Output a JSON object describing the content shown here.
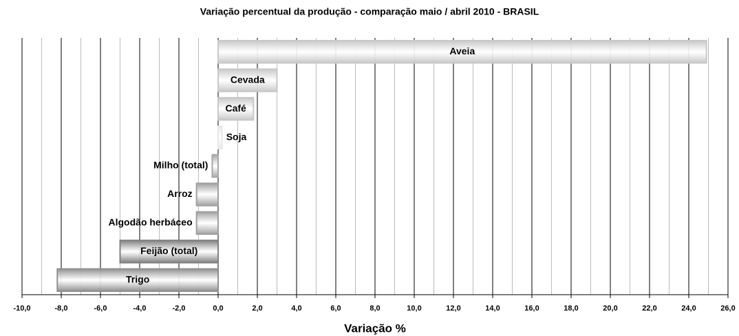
{
  "chart_data": {
    "type": "bar",
    "orientation": "horizontal",
    "title": "Variação percentual da produção - comparação maio / abril 2010 - BRASIL",
    "xlabel": "Variação %",
    "categories": [
      "Aveia",
      "Cevada",
      "Café",
      "Soja",
      "Milho (total)",
      "Arroz",
      "Algodão herbáceo",
      "Feijão (total)",
      "Trigo"
    ],
    "values": [
      24.9,
      3.0,
      1.8,
      0.2,
      -0.3,
      -1.1,
      -1.1,
      -5.0,
      -8.2
    ],
    "colors": [
      "#c8c8c8",
      "#c8c8c8",
      "#c8c8c8",
      "#e8e8e8",
      "#a8a8a8",
      "#a0a0a0",
      "#a0a0a0",
      "#808080",
      "#909090"
    ],
    "xlim": [
      -10,
      26
    ],
    "xticks": [
      {
        "value": -10,
        "label": "-10,0"
      },
      {
        "value": -8,
        "label": "-8,0"
      },
      {
        "value": -6,
        "label": "-6,0"
      },
      {
        "value": -4,
        "label": "-4,0"
      },
      {
        "value": -2,
        "label": "-2,0"
      },
      {
        "value": 0,
        "label": "0,0"
      },
      {
        "value": 2,
        "label": "2,0"
      },
      {
        "value": 4,
        "label": "4,0"
      },
      {
        "value": 6,
        "label": "6,0"
      },
      {
        "value": 8,
        "label": "8,0"
      },
      {
        "value": 10,
        "label": "10,0"
      },
      {
        "value": 12,
        "label": "12,0"
      },
      {
        "value": 14,
        "label": "14,0"
      },
      {
        "value": 16,
        "label": "16,0"
      },
      {
        "value": 18,
        "label": "18,0"
      },
      {
        "value": 20,
        "label": "20,0"
      },
      {
        "value": 22,
        "label": "22,0"
      },
      {
        "value": 24,
        "label": "24,0"
      },
      {
        "value": 26,
        "label": "26,0"
      }
    ],
    "minor_xticks": [
      -9,
      -7,
      -5,
      -3,
      -1,
      1,
      3,
      5,
      7,
      9,
      11,
      13,
      15,
      17,
      19,
      21,
      23,
      25
    ],
    "grid": true
  }
}
